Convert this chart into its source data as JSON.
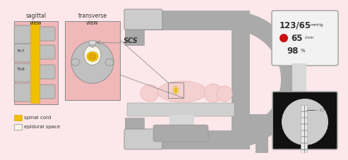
{
  "fig_bg": "#fce8ea",
  "gray_main": "#aaaaaa",
  "gray_dark": "#888888",
  "gray_light": "#cccccc",
  "gray_lighter": "#d8d8d8",
  "gray_darkest": "#777777",
  "pink_body": "#e8b8b8",
  "pink_light": "#f5d0d0",
  "pink_very_light": "#fae8e8",
  "spine_bg": "#f0b8b8",
  "bone_color": "#c0c0c0",
  "cord_yellow": "#f0c000",
  "cord_yellow2": "#d8a800",
  "epidural_white": "#f5f5e8",
  "text_dark": "#333333",
  "red_heart": "#cc1111",
  "monitor_bg": "#f2f2f2",
  "monitor_border": "#aaaaaa",
  "xray_bg": "#111111",
  "xray_circle": "#cccccc",
  "lead_white": "#e8e8e8",
  "carm_color": "#aaaaaa",
  "table_color": "#b8b8b8",
  "table_light": "#d0d0d0",
  "sagittal_label": "sagittal\nview",
  "transverse_label": "transverse\nview",
  "th7_label": "Th7",
  "th8_label": "Th8",
  "scs_label": "SCS",
  "legend_cord": "spinal cord",
  "legend_epidural": "epidural space",
  "bp_text": "123/65",
  "bp_unit": "mmHg",
  "hr_text": "65",
  "hr_unit": "/min",
  "spo2_text": "98",
  "spo2_unit": "%",
  "c7_label": "— C7"
}
